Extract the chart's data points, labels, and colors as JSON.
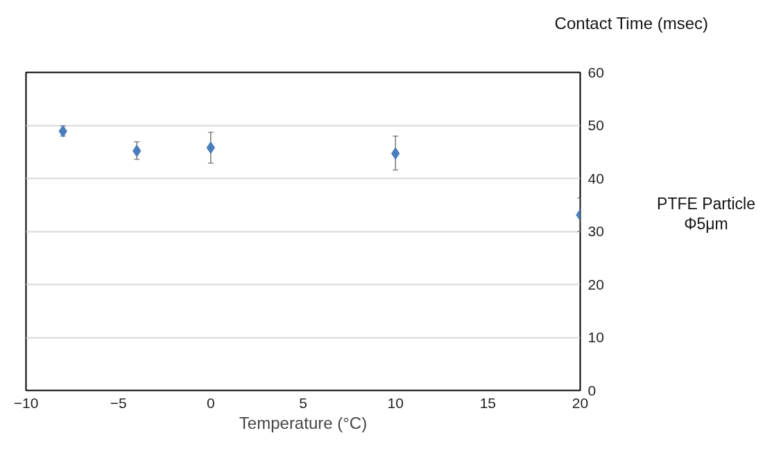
{
  "chart_data": {
    "type": "scatter",
    "xlabel": "Temperature (°C)",
    "ylabel": "Contact  Time (msec)",
    "x": [
      -8,
      -4,
      0,
      10,
      20
    ],
    "series": [
      {
        "color": "#4a7ebb",
        "values": [
          48.9,
          45.2,
          45.8,
          44.7,
          33.1
        ],
        "errors": [
          [
            48.0,
            49.9
          ],
          [
            43.6,
            46.9
          ],
          [
            42.9,
            48.7
          ],
          [
            41.6,
            48.0
          ],
          [
            30.0,
            36.3
          ]
        ]
      }
    ],
    "xlim": [
      -10,
      20
    ],
    "xticks": [
      -10,
      -5,
      0,
      5,
      10,
      15,
      20
    ],
    "ylim": [
      0,
      60
    ],
    "yticks": [
      0,
      10,
      20,
      30,
      40,
      50,
      60
    ],
    "grid": "y",
    "marker": "diamond",
    "annotations": [
      "PTFE Particle\nΦ5μm"
    ]
  }
}
